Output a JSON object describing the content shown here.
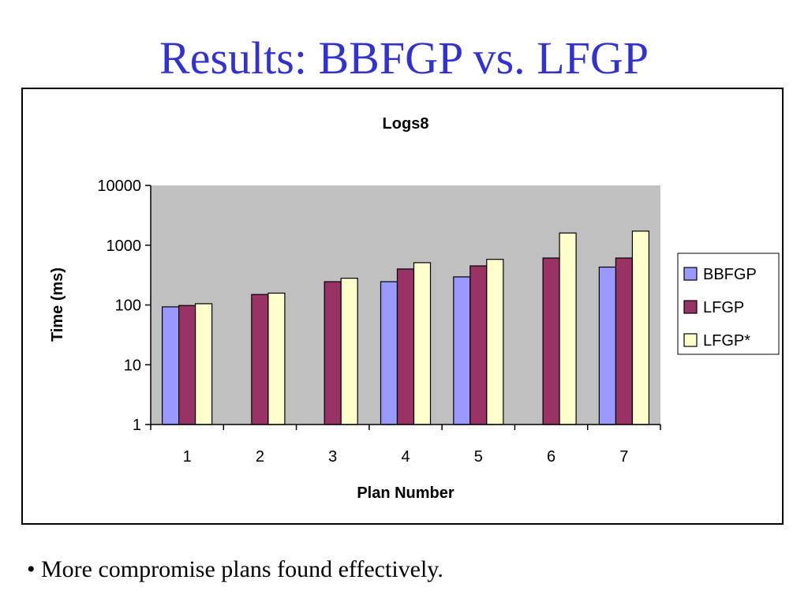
{
  "slide": {
    "title": "Results: BBFGP vs. LFGP",
    "bullet": "• More compromise plans found effectively."
  },
  "chart_data": {
    "type": "bar",
    "title": "Logs8",
    "xlabel": "Plan Number",
    "ylabel": "Time (ms)",
    "y_scale": "log",
    "ylim": [
      1,
      10000
    ],
    "y_ticks": [
      "1",
      "10",
      "100",
      "1000",
      "10000"
    ],
    "grid": false,
    "plot_background": "#c0c0c0",
    "legend_position": "right",
    "categories": [
      "1",
      "2",
      "3",
      "4",
      "5",
      "6",
      "7"
    ],
    "series": [
      {
        "name": "BBFGP",
        "color": "#9999ff",
        "values": [
          93,
          null,
          null,
          245,
          295,
          null,
          430
        ]
      },
      {
        "name": "LFGP",
        "color": "#993366",
        "values": [
          98,
          150,
          245,
          400,
          450,
          610,
          610
        ]
      },
      {
        "name": "LFGP*",
        "color": "#ffffcc",
        "values": [
          105,
          158,
          280,
          510,
          580,
          1600,
          1720
        ]
      }
    ]
  }
}
